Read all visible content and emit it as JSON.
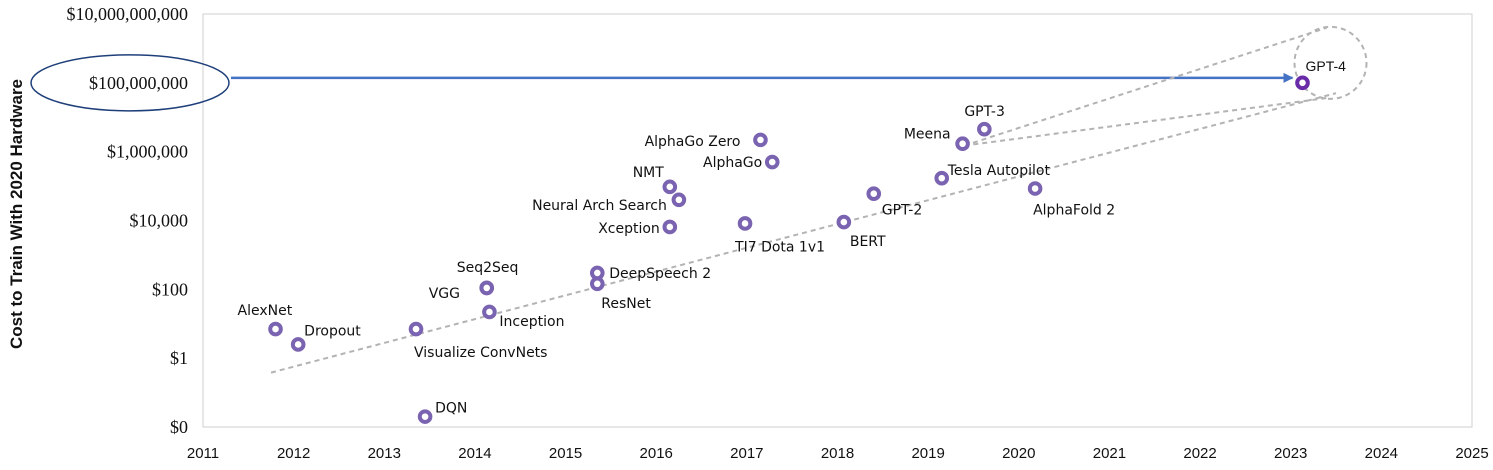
{
  "chart_data": {
    "type": "scatter",
    "title": "",
    "xlabel": "",
    "ylabel": "Cost to Train With 2020 Hardware",
    "xlim": [
      2011,
      2025
    ],
    "ylim": [
      0.01,
      10000000000
    ],
    "y_scale": "log",
    "x_ticks": [
      "2011",
      "2012",
      "2013",
      "2014",
      "2015",
      "2016",
      "2017",
      "2018",
      "2019",
      "2020",
      "2021",
      "2022",
      "2023",
      "2024",
      "2025"
    ],
    "y_ticks": [
      {
        "value": 0.01,
        "label": "$0"
      },
      {
        "value": 1,
        "label": "$1"
      },
      {
        "value": 100,
        "label": "$100"
      },
      {
        "value": 10000,
        "label": "$10,000"
      },
      {
        "value": 1000000,
        "label": "$1,000,000"
      },
      {
        "value": 100000000,
        "label": "$100,000,000"
      },
      {
        "value": 10000000000,
        "label": "$10,000,000,000"
      }
    ],
    "grid": false,
    "legend": "none",
    "marker_color": "#7a63b0",
    "highlight_color": "#6a2ba8",
    "arrow_color": "#4472c4",
    "trend_color": "#b3b3b3",
    "trendline": {
      "x": [
        2011.75,
        2023.5
      ],
      "y": [
        0.38,
        50000000
      ]
    },
    "callout": {
      "from_label": "$100,000,000",
      "to_point": "GPT-4",
      "y": 100000000
    },
    "points": [
      {
        "name": "AlexNet",
        "x": 2011.8,
        "y": 7
      },
      {
        "name": "Dropout",
        "x": 2012.05,
        "y": 2.5
      },
      {
        "name": "DQN",
        "x": 2013.45,
        "y": 0.02
      },
      {
        "name": "Visualize ConvNets",
        "x": 2013.35,
        "y": 7
      },
      {
        "name": "VGG",
        "x": 2014.13,
        "y": 110
      },
      {
        "name": "Seq2Seq",
        "x": 2014.13,
        "y": 110
      },
      {
        "name": "Inception",
        "x": 2014.16,
        "y": 22
      },
      {
        "name": "ResNet",
        "x": 2015.35,
        "y": 145
      },
      {
        "name": "DeepSpeech 2",
        "x": 2015.35,
        "y": 300
      },
      {
        "name": "Xception",
        "x": 2016.15,
        "y": 6500
      },
      {
        "name": "NMT",
        "x": 2016.15,
        "y": 95000
      },
      {
        "name": "Neural Arch Search",
        "x": 2016.25,
        "y": 40000
      },
      {
        "name": "TI7 Dota 1v1",
        "x": 2016.98,
        "y": 8200
      },
      {
        "name": "AlphaGo Zero",
        "x": 2017.15,
        "y": 2200000
      },
      {
        "name": "AlphaGo",
        "x": 2017.28,
        "y": 500000
      },
      {
        "name": "BERT",
        "x": 2018.07,
        "y": 9000
      },
      {
        "name": "GPT-2",
        "x": 2018.4,
        "y": 60000
      },
      {
        "name": "Tesla Autopilot",
        "x": 2019.15,
        "y": 170000
      },
      {
        "name": "Meena",
        "x": 2019.38,
        "y": 1700000
      },
      {
        "name": "GPT-3",
        "x": 2019.62,
        "y": 4500000
      },
      {
        "name": "AlphaFold 2",
        "x": 2020.18,
        "y": 85000
      },
      {
        "name": "GPT-4",
        "x": 2023.13,
        "y": 100000000
      }
    ]
  }
}
